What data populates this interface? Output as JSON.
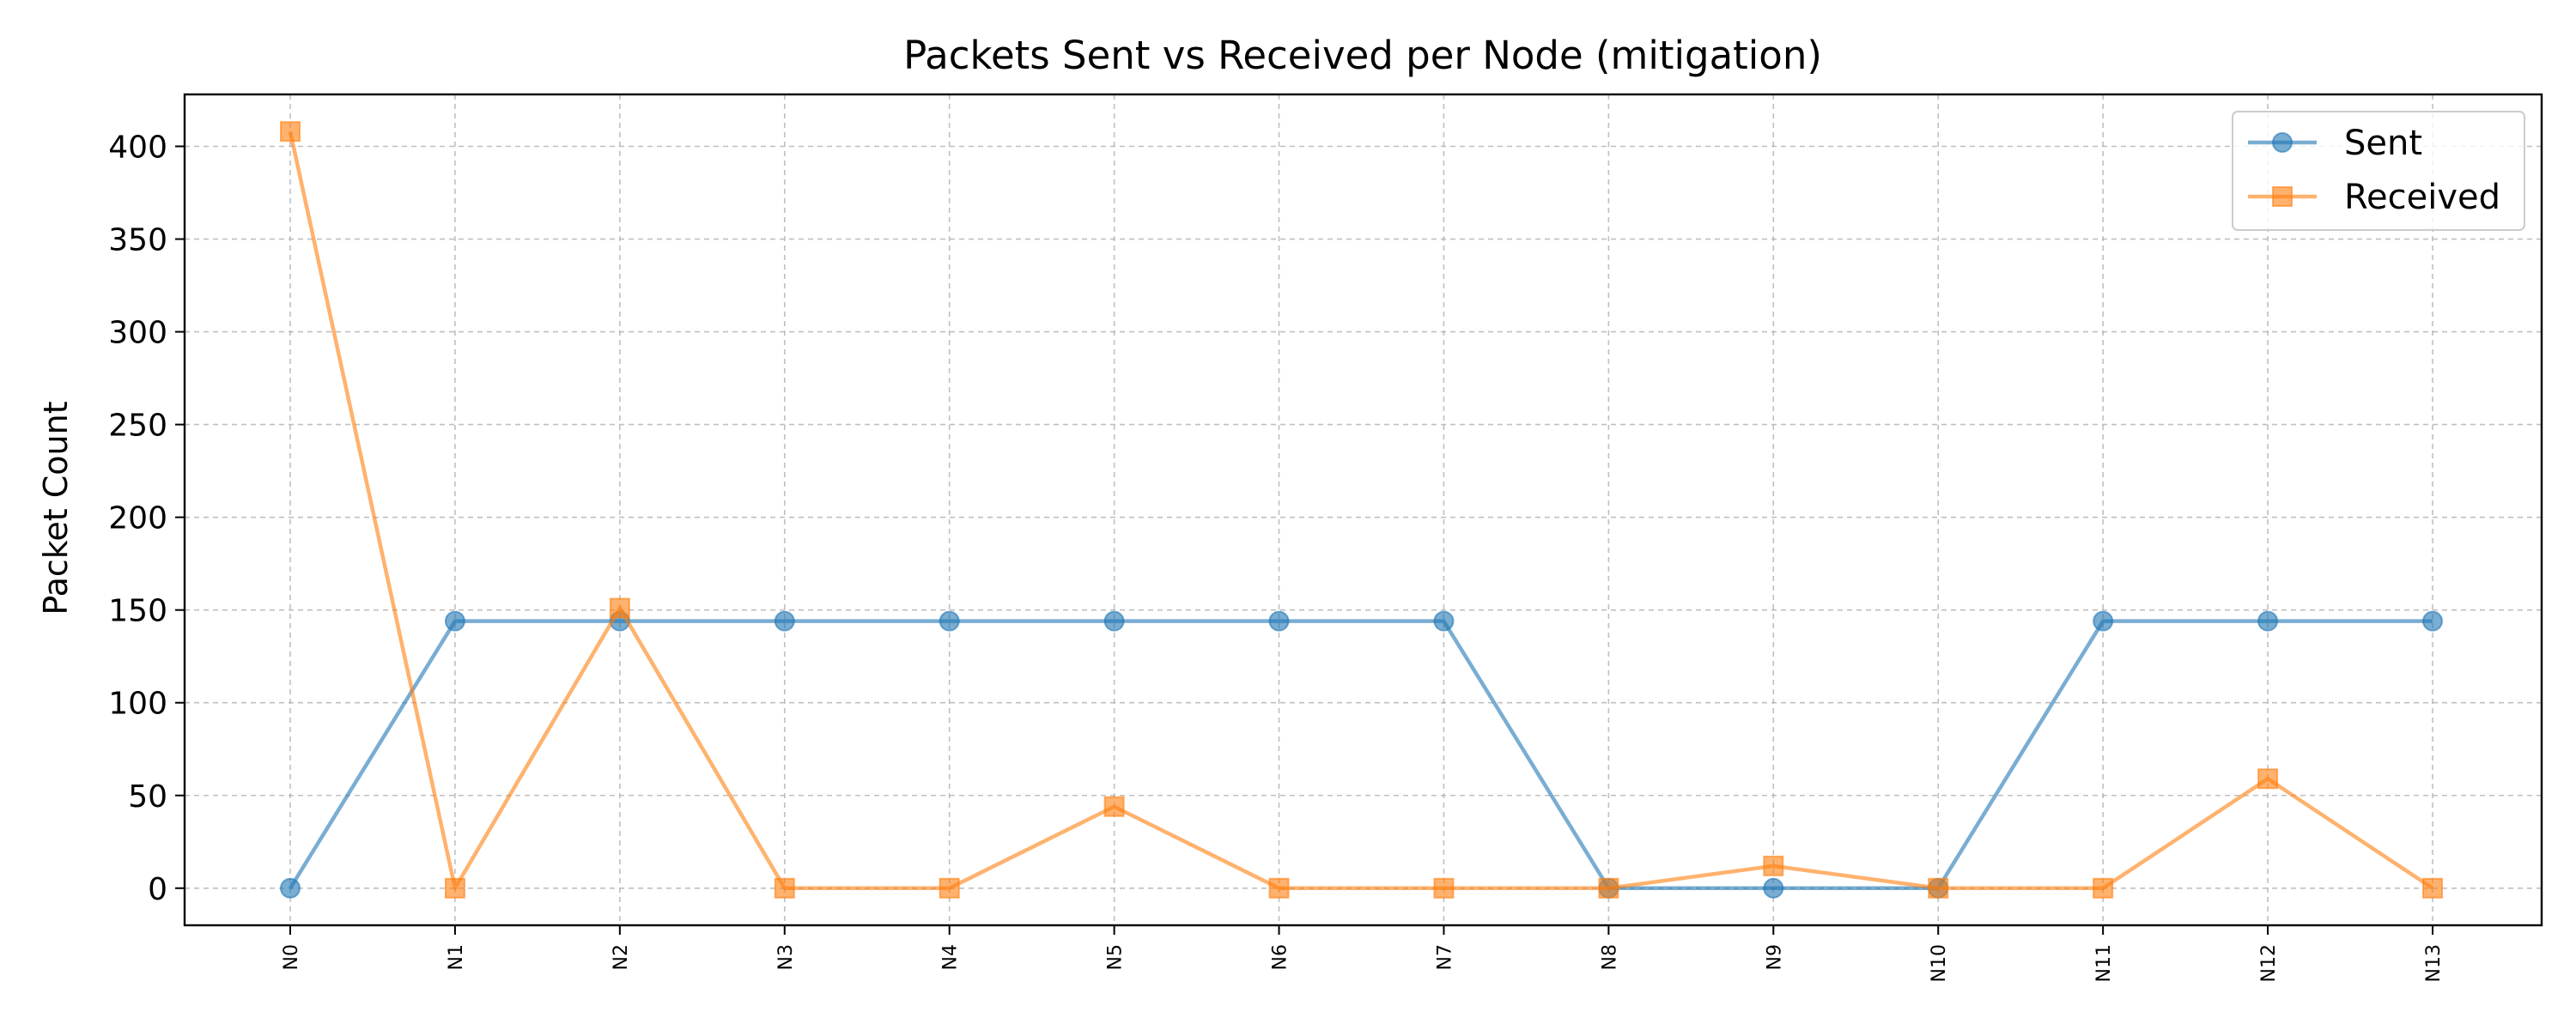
{
  "chart_data": {
    "type": "line",
    "title": "Packets Sent vs Received per Node (mitigation)",
    "xlabel": "",
    "ylabel": "Packet Count",
    "categories": [
      "N0",
      "N1",
      "N2",
      "N3",
      "N4",
      "N5",
      "N6",
      "N7",
      "N8",
      "N9",
      "N10",
      "N11",
      "N12",
      "N13"
    ],
    "ylim": [
      -20,
      428
    ],
    "yticks": [
      0,
      50,
      100,
      150,
      200,
      250,
      300,
      350,
      400
    ],
    "grid": true,
    "legend_position": "top-right",
    "series": [
      {
        "name": "Sent",
        "color": "#1f77b4",
        "marker": "circle",
        "values": [
          0,
          144,
          144,
          144,
          144,
          144,
          144,
          144,
          0,
          0,
          0,
          144,
          144,
          144
        ]
      },
      {
        "name": "Received",
        "color": "#ff7f0e",
        "marker": "square",
        "values": [
          408,
          0,
          151,
          0,
          0,
          44,
          0,
          0,
          0,
          12,
          0,
          0,
          59,
          0
        ]
      }
    ]
  }
}
